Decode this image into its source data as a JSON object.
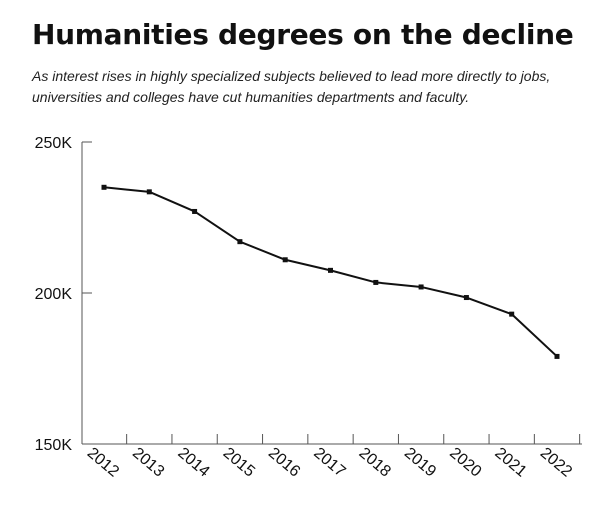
{
  "title": "Humanities degrees on the decline",
  "subtitle": "As interest rises in highly specialized subjects believed to lead more directly to jobs, universities and colleges have cut humanities departments and faculty.",
  "chart_data": {
    "type": "line",
    "title": "Humanities degrees on the decline",
    "subtitle": "As interest rises in highly specialized subjects believed to lead more directly to jobs, universities and colleges have cut humanities departments and faculty.",
    "xlabel": "",
    "ylabel": "",
    "x": [
      "2012",
      "2013",
      "2014",
      "2015",
      "2016",
      "2017",
      "2018",
      "2019",
      "2020",
      "2021",
      "2022"
    ],
    "series": [
      {
        "values": [
          235000,
          233500,
          227000,
          217000,
          211000,
          207500,
          203500,
          202000,
          198500,
          193000,
          179000
        ]
      }
    ],
    "ylim": [
      150000,
      250000
    ],
    "y_ticks": [
      150000,
      200000,
      250000
    ],
    "y_tick_labels": [
      "150K",
      "200K",
      "250K"
    ],
    "grid": false,
    "legend": "none",
    "line_color": "#111111"
  }
}
